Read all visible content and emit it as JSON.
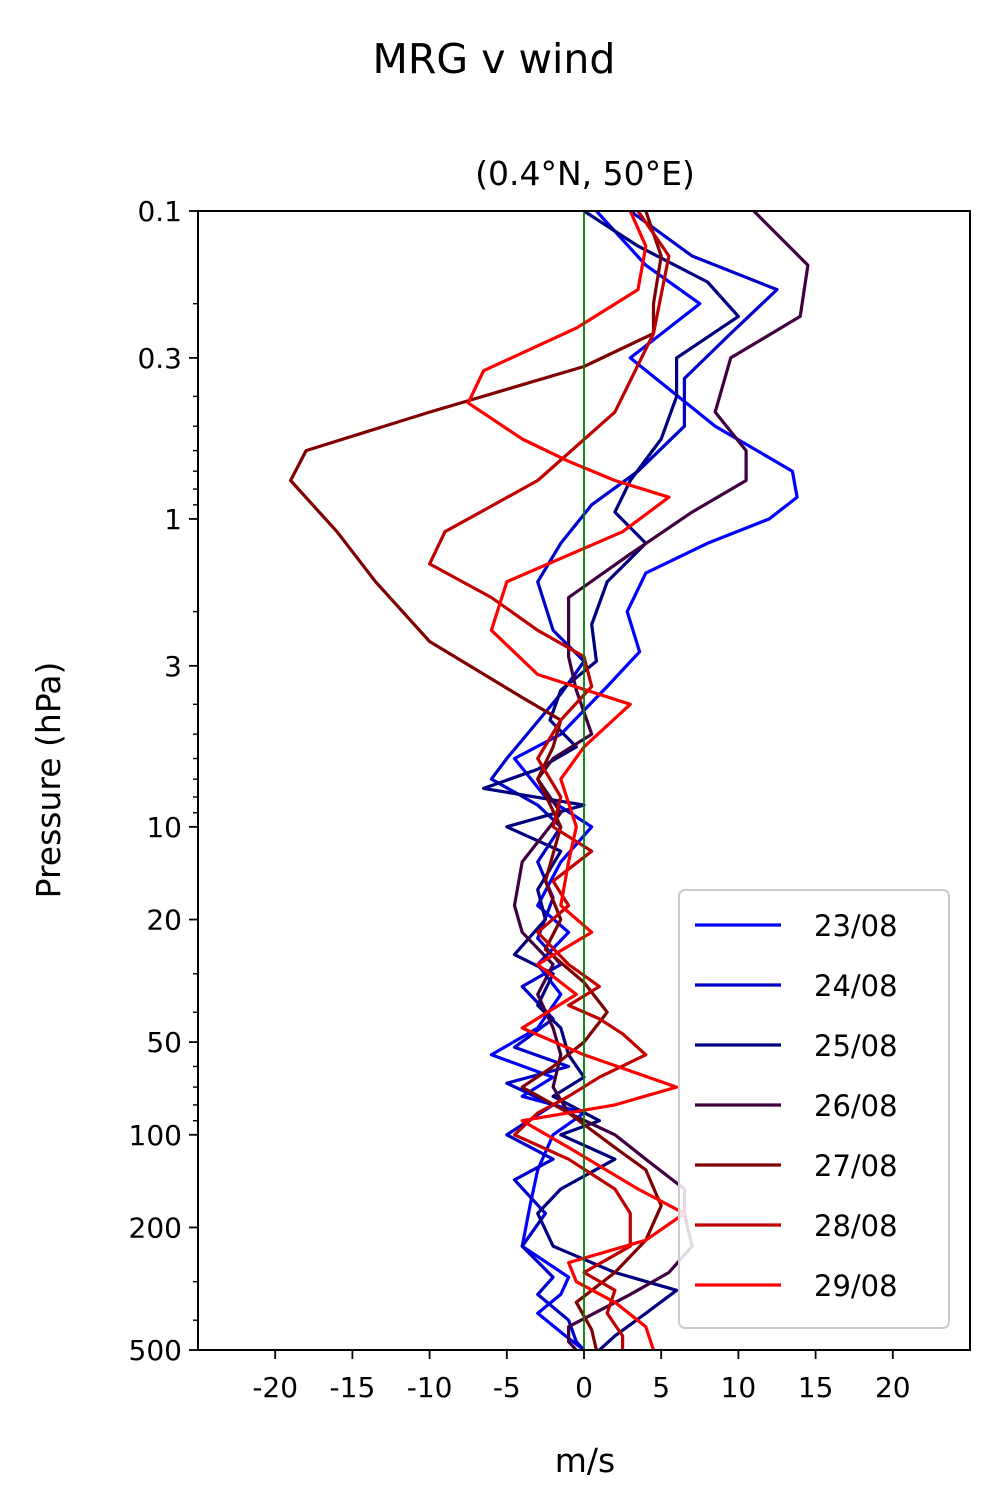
{
  "chart_data": {
    "type": "line",
    "title": "MRG v wind",
    "subtitle": "(0.4°N, 50°E)",
    "xlabel": "m/s",
    "ylabel": "Pressure (hPa)",
    "xlim": [
      -25,
      25
    ],
    "ylim": [
      500,
      0.1
    ],
    "yscale": "log",
    "xticks": [
      -20,
      -15,
      -10,
      -5,
      0,
      5,
      10,
      15,
      20
    ],
    "xtick_labels": [
      "-20",
      "-15",
      "-10",
      "-5",
      "0",
      "5",
      "10",
      "15",
      "20"
    ],
    "yticks": [
      0.1,
      0.3,
      1,
      3,
      10,
      20,
      50,
      100,
      200,
      500
    ],
    "ytick_labels": [
      "0.1",
      "0.3",
      "1",
      "3",
      "10",
      "20",
      "50",
      "100",
      "200",
      "500"
    ],
    "reference_line": {
      "x": 0,
      "color": "#008000"
    },
    "legend_position": "lower right",
    "grid": false,
    "series": [
      {
        "name": "23/08",
        "color": "#0000ff",
        "points": [
          [
            0.8,
            0.1
          ],
          [
            4,
            0.15
          ],
          [
            7.5,
            0.2
          ],
          [
            3,
            0.3
          ],
          [
            8.5,
            0.5
          ],
          [
            13.5,
            0.7
          ],
          [
            13.8,
            0.85
          ],
          [
            12,
            1
          ],
          [
            8,
            1.2
          ],
          [
            4,
            1.5
          ],
          [
            2.8,
            2
          ],
          [
            3.6,
            2.7
          ],
          [
            1.5,
            3.5
          ],
          [
            -1.5,
            5
          ],
          [
            -4.5,
            6
          ],
          [
            -2.5,
            8
          ],
          [
            0.5,
            10
          ],
          [
            -1.5,
            13
          ],
          [
            -3,
            18
          ],
          [
            -1,
            22
          ],
          [
            -3,
            28
          ],
          [
            -1.5,
            35
          ],
          [
            -3,
            45
          ],
          [
            -6,
            55
          ],
          [
            -2,
            65
          ],
          [
            -4,
            75
          ],
          [
            0,
            85
          ],
          [
            -2,
            100
          ],
          [
            -3,
            130
          ],
          [
            -3.5,
            170
          ],
          [
            -4,
            230
          ],
          [
            -1,
            290
          ],
          [
            -1.5,
            330
          ],
          [
            -3,
            380
          ],
          [
            -1.2,
            450
          ],
          [
            0,
            500
          ]
        ]
      },
      {
        "name": "24/08",
        "color": "#0000cc",
        "points": [
          [
            3,
            0.1
          ],
          [
            7,
            0.14
          ],
          [
            12.5,
            0.18
          ],
          [
            9.5,
            0.25
          ],
          [
            6.5,
            0.35
          ],
          [
            6.5,
            0.5
          ],
          [
            3.5,
            0.7
          ],
          [
            0.5,
            0.9
          ],
          [
            -1.5,
            1.2
          ],
          [
            -3,
            1.6
          ],
          [
            -2,
            2.3
          ],
          [
            0,
            2.9
          ],
          [
            -1.5,
            3.7
          ],
          [
            -5,
            6
          ],
          [
            -6,
            7
          ],
          [
            -3,
            8.5
          ],
          [
            -1.5,
            10
          ],
          [
            -3,
            13
          ],
          [
            -2,
            17
          ],
          [
            -3,
            23
          ],
          [
            -1.5,
            28
          ],
          [
            -4,
            33
          ],
          [
            -2,
            42
          ],
          [
            -4.5,
            52
          ],
          [
            -1,
            60
          ],
          [
            -5,
            68
          ],
          [
            -2,
            80
          ],
          [
            -5,
            100
          ],
          [
            -2,
            120
          ],
          [
            -4.5,
            140
          ],
          [
            -2.5,
            180
          ],
          [
            -4,
            230
          ],
          [
            -2,
            290
          ],
          [
            -3,
            330
          ],
          [
            -1,
            400
          ],
          [
            -0.5,
            470
          ],
          [
            0,
            500
          ]
        ]
      },
      {
        "name": "25/08",
        "color": "#000080",
        "points": [
          [
            0,
            0.1
          ],
          [
            3.5,
            0.13
          ],
          [
            8,
            0.17
          ],
          [
            10,
            0.22
          ],
          [
            6,
            0.3
          ],
          [
            6,
            0.4
          ],
          [
            5,
            0.55
          ],
          [
            3,
            0.75
          ],
          [
            2,
            0.95
          ],
          [
            4,
            1.2
          ],
          [
            1.5,
            1.6
          ],
          [
            0.5,
            2.2
          ],
          [
            0.8,
            2.9
          ],
          [
            -1.5,
            3.6
          ],
          [
            -2.2,
            4.5
          ],
          [
            -0.5,
            5.5
          ],
          [
            -3,
            6.5
          ],
          [
            -6.5,
            7.5
          ],
          [
            0,
            8.5
          ],
          [
            -5,
            10
          ],
          [
            -1.5,
            12
          ],
          [
            -3,
            16
          ],
          [
            -2.5,
            20
          ],
          [
            -4.5,
            26
          ],
          [
            -2,
            30
          ],
          [
            -3,
            38
          ],
          [
            -1.5,
            45
          ],
          [
            -1,
            55
          ],
          [
            0,
            65
          ],
          [
            -2,
            75
          ],
          [
            1,
            90
          ],
          [
            -1.5,
            100
          ],
          [
            2,
            120
          ],
          [
            -1.5,
            150
          ],
          [
            -3,
            180
          ],
          [
            -2,
            230
          ],
          [
            2,
            280
          ],
          [
            6,
            320
          ],
          [
            4,
            380
          ],
          [
            2,
            450
          ],
          [
            1,
            500
          ]
        ]
      },
      {
        "name": "26/08",
        "color": "#400040",
        "points": [
          [
            11,
            0.1
          ],
          [
            14.5,
            0.15
          ],
          [
            14,
            0.22
          ],
          [
            9.5,
            0.3
          ],
          [
            8.5,
            0.45
          ],
          [
            10.5,
            0.6
          ],
          [
            10.5,
            0.75
          ],
          [
            7,
            0.95
          ],
          [
            3,
            1.3
          ],
          [
            -1,
            1.8
          ],
          [
            -1,
            2.8
          ],
          [
            -0.5,
            3.6
          ],
          [
            0.5,
            5
          ],
          [
            -2,
            6
          ],
          [
            -3,
            7
          ],
          [
            -1.5,
            9
          ],
          [
            -4,
            13
          ],
          [
            -4.5,
            18
          ],
          [
            -4,
            22
          ],
          [
            -2,
            28
          ],
          [
            -3,
            35
          ],
          [
            -2,
            45
          ],
          [
            -1.5,
            55
          ],
          [
            -2,
            70
          ],
          [
            -1,
            85
          ],
          [
            2,
            100
          ],
          [
            4,
            120
          ],
          [
            6.5,
            150
          ],
          [
            6.5,
            180
          ],
          [
            7,
            230
          ],
          [
            5.5,
            280
          ],
          [
            3,
            330
          ],
          [
            -1,
            420
          ],
          [
            -1,
            470
          ],
          [
            -0.5,
            500
          ]
        ]
      },
      {
        "name": "27/08",
        "color": "#800000",
        "points": [
          [
            4,
            0.1
          ],
          [
            5,
            0.14
          ],
          [
            4.5,
            0.2
          ],
          [
            4.5,
            0.25
          ],
          [
            0,
            0.32
          ],
          [
            -10,
            0.45
          ],
          [
            -18,
            0.6
          ],
          [
            -19,
            0.75
          ],
          [
            -16,
            1.1
          ],
          [
            -13.5,
            1.6
          ],
          [
            -10,
            2.5
          ],
          [
            -4,
            3.8
          ],
          [
            -1.5,
            4.5
          ],
          [
            -2,
            5.5
          ],
          [
            -3,
            7
          ],
          [
            -1.5,
            10
          ],
          [
            -2.5,
            15
          ],
          [
            -1.5,
            20
          ],
          [
            -2.5,
            25
          ],
          [
            0,
            32
          ],
          [
            1.5,
            40
          ],
          [
            0,
            50
          ],
          [
            -2,
            60
          ],
          [
            -4,
            70
          ],
          [
            -1,
            85
          ],
          [
            2,
            110
          ],
          [
            4,
            130
          ],
          [
            5,
            170
          ],
          [
            4,
            220
          ],
          [
            2,
            280
          ],
          [
            -0.5,
            350
          ],
          [
            0.5,
            430
          ],
          [
            0.8,
            500
          ]
        ]
      },
      {
        "name": "28/08",
        "color": "#c00000",
        "points": [
          [
            3.5,
            0.1
          ],
          [
            5.5,
            0.14
          ],
          [
            4.5,
            0.25
          ],
          [
            2,
            0.45
          ],
          [
            -3,
            0.75
          ],
          [
            -9,
            1.1
          ],
          [
            -10,
            1.4
          ],
          [
            -6,
            1.8
          ],
          [
            -3,
            2.3
          ],
          [
            0,
            2.8
          ],
          [
            0.5,
            3.5
          ],
          [
            -1.5,
            4.5
          ],
          [
            -3,
            6
          ],
          [
            -1.5,
            8
          ],
          [
            -2,
            10
          ],
          [
            0.5,
            12
          ],
          [
            -2,
            15
          ],
          [
            -1,
            18
          ],
          [
            -3,
            22
          ],
          [
            -1,
            28
          ],
          [
            1,
            33
          ],
          [
            -1,
            38
          ],
          [
            1,
            42
          ],
          [
            2.5,
            47
          ],
          [
            4,
            55
          ],
          [
            1,
            65
          ],
          [
            -1,
            75
          ],
          [
            -3,
            85
          ],
          [
            -4.5,
            100
          ],
          [
            -1,
            120
          ],
          [
            2,
            150
          ],
          [
            3,
            180
          ],
          [
            3,
            230
          ],
          [
            0,
            280
          ],
          [
            2,
            320
          ],
          [
            1.5,
            380
          ],
          [
            2.5,
            450
          ],
          [
            2.5,
            500
          ]
        ]
      },
      {
        "name": "29/08",
        "color": "#ff0000",
        "points": [
          [
            3,
            0.1
          ],
          [
            4,
            0.13
          ],
          [
            3.5,
            0.18
          ],
          [
            -0.5,
            0.24
          ],
          [
            -6.5,
            0.33
          ],
          [
            -7.5,
            0.42
          ],
          [
            -4,
            0.55
          ],
          [
            -1,
            0.65
          ],
          [
            2,
            0.75
          ],
          [
            5.5,
            0.85
          ],
          [
            2.5,
            1.1
          ],
          [
            -5,
            1.6
          ],
          [
            -6,
            2.3
          ],
          [
            -3,
            3.2
          ],
          [
            3,
            4
          ],
          [
            0,
            5.5
          ],
          [
            -1.5,
            7
          ],
          [
            -0.5,
            10
          ],
          [
            -1,
            13
          ],
          [
            -1.5,
            18
          ],
          [
            0.5,
            22
          ],
          [
            -3,
            28
          ],
          [
            -0.5,
            35
          ],
          [
            -4,
            45
          ],
          [
            0,
            55
          ],
          [
            6,
            70
          ],
          [
            2,
            80
          ],
          [
            -4,
            90
          ],
          [
            -1,
            110
          ],
          [
            3.5,
            150
          ],
          [
            6.5,
            180
          ],
          [
            4,
            220
          ],
          [
            -1,
            260
          ],
          [
            -0.5,
            300
          ],
          [
            2,
            350
          ],
          [
            4,
            420
          ],
          [
            4.5,
            500
          ]
        ]
      }
    ]
  }
}
